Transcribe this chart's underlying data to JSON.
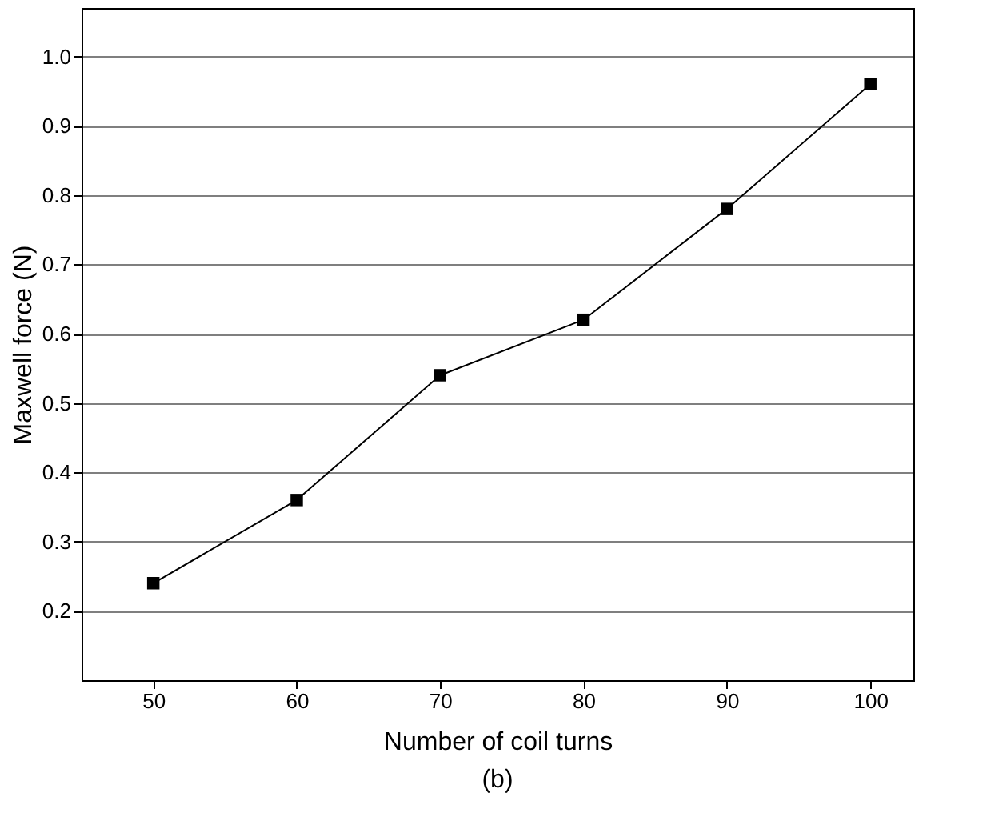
{
  "chart_data": {
    "type": "line",
    "xlabel": "Number of coil turns",
    "ylabel": "Maxwell force (N)",
    "annotations": [
      "(b)"
    ],
    "x": [
      50,
      60,
      70,
      80,
      90,
      100
    ],
    "series": [
      {
        "color": "#000000",
        "values": [
          0.24,
          0.36,
          0.54,
          0.62,
          0.78,
          0.96
        ]
      }
    ],
    "xlim": [
      45,
      103
    ],
    "xticks": [
      50,
      60,
      70,
      80,
      90,
      100
    ],
    "ylim": [
      0.1,
      1.07
    ],
    "yticks": [
      0.2,
      0.3,
      0.4,
      0.5,
      0.6,
      0.7,
      0.8,
      0.9,
      {
        "value": 1,
        "label": "1.0"
      }
    ],
    "grid": "y",
    "marker": "square",
    "line_style": "solid"
  }
}
